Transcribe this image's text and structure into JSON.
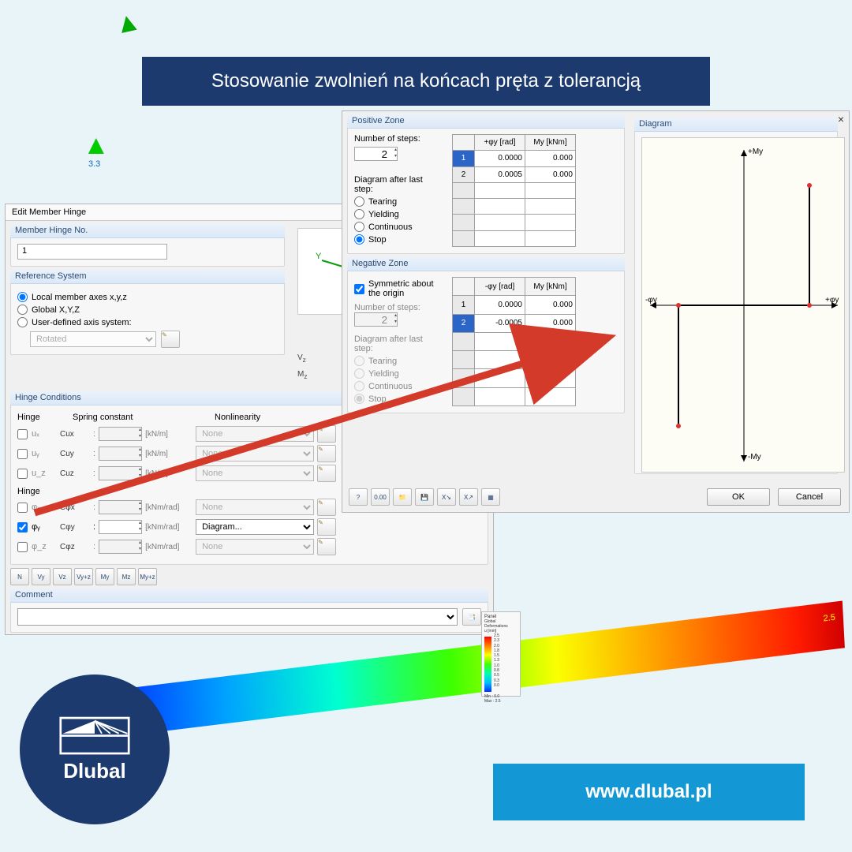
{
  "banner_title": "Stosowanie zwolnień na końcach pręta z tolerancją",
  "website": "www.dlubal.pl",
  "logo_text": "Dlubal",
  "beam_value": "2.5",
  "scale": {
    "title": "Panel",
    "subtitle": "Global Deformations",
    "unit": "u [mm]",
    "values": [
      "2.5",
      "2.3",
      "2.0",
      "1.8",
      "1.5",
      "1.3",
      "1.0",
      "0.8",
      "0.5",
      "0.3",
      "0.0"
    ],
    "min_label": "Min :  0.0",
    "max_label": "Max :  2.5"
  },
  "support_label": "3.3",
  "hinge": {
    "dialog_title": "Edit Member Hinge",
    "number_group": "Member Hinge No.",
    "number_value": "1",
    "refsys_group": "Reference System",
    "refsys_opts": [
      "Local member axes x,y,z",
      "Global X,Y,Z",
      "User-defined axis system:"
    ],
    "refsys_selected": 0,
    "rotated_label": "Rotated",
    "cond_group": "Hinge Conditions",
    "headers": {
      "hinge": "Hinge",
      "spring": "Spring constant",
      "nl": "Nonlinearity"
    },
    "trans_label": "Hinge",
    "rot_label": "Hinge",
    "trans": [
      {
        "name": "uₓ",
        "c": "Cux",
        "unit": "[kN/m]",
        "checked": false,
        "nl": "None"
      },
      {
        "name": "uᵧ",
        "c": "Cuy",
        "unit": "[kN/m]",
        "checked": false,
        "nl": "None"
      },
      {
        "name": "u_z",
        "c": "Cuz",
        "unit": "[kN/m]",
        "checked": false,
        "nl": "None"
      }
    ],
    "rot": [
      {
        "name": "φₓ",
        "c": "Cφx",
        "unit": "[kNm/rad]",
        "checked": false,
        "nl": "None"
      },
      {
        "name": "φᵧ",
        "c": "Cφy",
        "unit": "[kNm/rad]",
        "checked": true,
        "nl": "Diagram..."
      },
      {
        "name": "φ_z",
        "c": "Cφz",
        "unit": "[kNm/rad]",
        "checked": false,
        "nl": "None"
      }
    ],
    "toolbar": [
      "N",
      "Vy",
      "Vz",
      "Vy+z",
      "My",
      "Mz",
      "My+z"
    ],
    "comment_group": "Comment"
  },
  "diagram_dlg": {
    "pos_group": "Positive Zone",
    "neg_group": "Negative Zone",
    "diagram_group": "Diagram",
    "steps_label": "Number of steps:",
    "steps_val": "2",
    "after_label": "Diagram after last step:",
    "after_opts": [
      "Tearing",
      "Yielding",
      "Continuous",
      "Stop"
    ],
    "after_selected": 3,
    "sym_label": "Symmetric about the origin",
    "sym_checked": true,
    "pos_cols": [
      "",
      "+φy [rad]",
      "My [kNm]"
    ],
    "pos_rows": [
      [
        "1",
        "0.0000",
        "0.000"
      ],
      [
        "2",
        "0.0005",
        "0.000"
      ]
    ],
    "pos_selected_row": 0,
    "neg_cols": [
      "",
      "-φy [rad]",
      "My [kNm]"
    ],
    "neg_rows": [
      [
        "1",
        "0.0000",
        "0.000"
      ],
      [
        "2",
        "-0.0005",
        "0.000"
      ]
    ],
    "neg_selected_row": 1,
    "axis_labels": {
      "top": "+My",
      "bottom": "-My",
      "left": "-φy",
      "right": "+φy"
    },
    "ok": "OK",
    "cancel": "Cancel",
    "icons": [
      "?",
      "0.00",
      "📁",
      "💾",
      "X↘",
      "X↗",
      "▦"
    ]
  },
  "axes": {
    "x_color": "#d02020",
    "y_color": "#109a10",
    "z_color": "#1030c0"
  }
}
